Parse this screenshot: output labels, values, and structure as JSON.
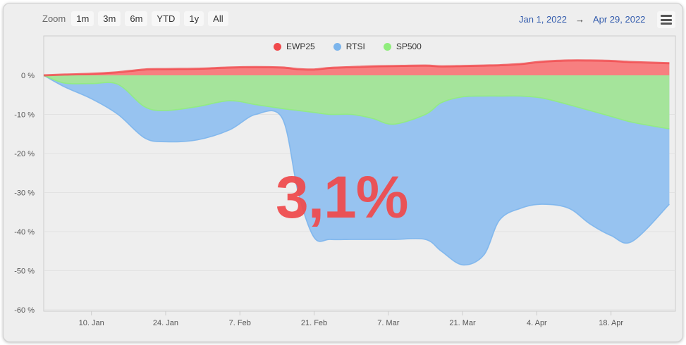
{
  "toolbar": {
    "zoom_label": "Zoom",
    "zoom_buttons": [
      "1m",
      "3m",
      "6m",
      "YTD",
      "1y",
      "All"
    ],
    "range_from": "Jan 1, 2022",
    "range_arrow": "→",
    "range_to": "Apr 29, 2022"
  },
  "overlay_value": "3,1%",
  "colors": {
    "EWP25": "#f0494b",
    "RTSI": "#7cb5ec",
    "SP500": "#90ed7d"
  },
  "chart_data": {
    "type": "area",
    "x_ticks": [
      "10. Jan",
      "24. Jan",
      "7. Feb",
      "21. Feb",
      "7. Mar",
      "21. Mar",
      "4. Apr",
      "18. Apr"
    ],
    "y_ticks": [
      "0 %",
      "-10 %",
      "-20 %",
      "-30 %",
      "-40 %",
      "-50 %",
      "-60 %"
    ],
    "ylim": [
      -60,
      5
    ],
    "x_dates": [
      "2022-01-01",
      "2022-01-05",
      "2022-01-10",
      "2022-01-15",
      "2022-01-20",
      "2022-01-24",
      "2022-01-30",
      "2022-02-05",
      "2022-02-10",
      "2022-02-15",
      "2022-02-18",
      "2022-02-21",
      "2022-02-24",
      "2022-02-28",
      "2022-03-04",
      "2022-03-08",
      "2022-03-14",
      "2022-03-17",
      "2022-03-21",
      "2022-03-25",
      "2022-03-28",
      "2022-04-01",
      "2022-04-05",
      "2022-04-10",
      "2022-04-14",
      "2022-04-18",
      "2022-04-22",
      "2022-04-29"
    ],
    "series": [
      {
        "name": "EWP25",
        "values": [
          0,
          0.2,
          0.4,
          0.8,
          1.5,
          1.6,
          1.7,
          2,
          2.1,
          2,
          1.6,
          1.5,
          1.9,
          2.1,
          2.3,
          2.4,
          2.5,
          2.3,
          2.4,
          2.5,
          2.6,
          2.9,
          3.5,
          3.8,
          3.8,
          3.7,
          3.4,
          3.1
        ]
      },
      {
        "name": "RTSI",
        "values": [
          0,
          -3,
          -6,
          -10,
          -16,
          -17,
          -16.5,
          -14,
          -10,
          -11,
          -30,
          -41.5,
          -42,
          -42,
          -42,
          -42,
          -42,
          -45,
          -48.5,
          -46,
          -37,
          -34,
          -33,
          -34,
          -38,
          -41,
          -42.5,
          -33
        ]
      },
      {
        "name": "SP500",
        "values": [
          0,
          -2,
          -2.1,
          -2.3,
          -8,
          -9,
          -8,
          -6.5,
          -7.5,
          -8.5,
          -9,
          -9.5,
          -10,
          -10,
          -11,
          -12.5,
          -10,
          -7,
          -5.5,
          -5.3,
          -5.3,
          -5.3,
          -5.8,
          -7.5,
          -9,
          -10.5,
          -12,
          -13.7
        ]
      }
    ]
  }
}
